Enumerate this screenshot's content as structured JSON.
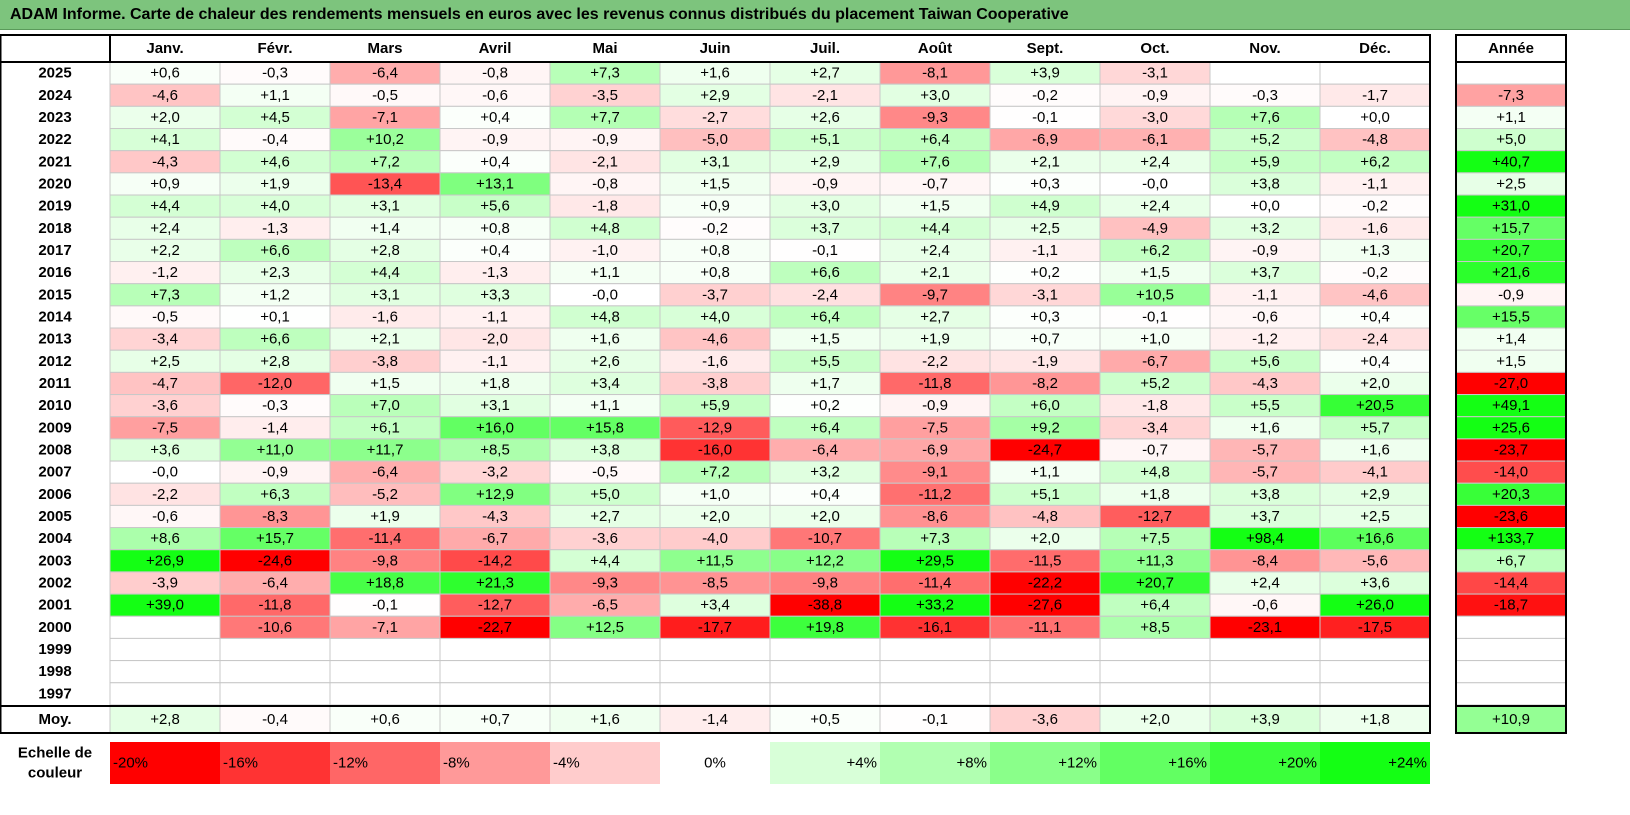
{
  "title": "ADAM Informe. Carte de chaleur des rendements mensuels en euros avec les revenus connus distribués du placement Taiwan Cooperative",
  "chart_data": {
    "type": "heatmap",
    "months": [
      "Janv.",
      "Févr.",
      "Mars",
      "Avril",
      "Mai",
      "Juin",
      "Juil.",
      "Août",
      "Sept.",
      "Oct.",
      "Nov.",
      "Déc."
    ],
    "year_header": "Année",
    "rows": [
      {
        "year": "2025",
        "values": [
          "+0,6",
          "-0,3",
          "-6,4",
          "-0,8",
          "+7,3",
          "+1,6",
          "+2,7",
          "-8,1",
          "+3,9",
          "-3,1",
          "",
          ""
        ],
        "annual": ""
      },
      {
        "year": "2024",
        "values": [
          "-4,6",
          "+1,1",
          "-0,5",
          "-0,6",
          "-3,5",
          "+2,9",
          "-2,1",
          "+3,0",
          "-0,2",
          "-0,9",
          "-0,3",
          "-1,7"
        ],
        "annual": "-7,3"
      },
      {
        "year": "2023",
        "values": [
          "+2,0",
          "+4,5",
          "-7,1",
          "+0,4",
          "+7,7",
          "-2,7",
          "+2,6",
          "-9,3",
          "-0,1",
          "-3,0",
          "+7,6",
          "+0,0"
        ],
        "annual": "+1,1"
      },
      {
        "year": "2022",
        "values": [
          "+4,1",
          "-0,4",
          "+10,2",
          "-0,9",
          "-0,9",
          "-5,0",
          "+5,1",
          "+6,4",
          "-6,9",
          "-6,1",
          "+5,2",
          "-4,8"
        ],
        "annual": "+5,0"
      },
      {
        "year": "2021",
        "values": [
          "-4,3",
          "+4,6",
          "+7,2",
          "+0,4",
          "-2,1",
          "+3,1",
          "+2,9",
          "+7,6",
          "+2,1",
          "+2,4",
          "+5,9",
          "+6,2"
        ],
        "annual": "+40,7"
      },
      {
        "year": "2020",
        "values": [
          "+0,9",
          "+1,9",
          "-13,4",
          "+13,1",
          "-0,8",
          "+1,5",
          "-0,9",
          "-0,7",
          "+0,3",
          "-0,0",
          "+3,8",
          "-1,1"
        ],
        "annual": "+2,5"
      },
      {
        "year": "2019",
        "values": [
          "+4,4",
          "+4,0",
          "+3,1",
          "+5,6",
          "-1,8",
          "+0,9",
          "+3,0",
          "+1,5",
          "+4,9",
          "+2,4",
          "+0,0",
          "-0,2"
        ],
        "annual": "+31,0"
      },
      {
        "year": "2018",
        "values": [
          "+2,4",
          "-1,3",
          "+1,4",
          "+0,8",
          "+4,8",
          "-0,2",
          "+3,7",
          "+4,4",
          "+2,5",
          "-4,9",
          "+3,2",
          "-1,6"
        ],
        "annual": "+15,7"
      },
      {
        "year": "2017",
        "values": [
          "+2,2",
          "+6,6",
          "+2,8",
          "+0,4",
          "-1,0",
          "+0,8",
          "-0,1",
          "+2,4",
          "-1,1",
          "+6,2",
          "-0,9",
          "+1,3"
        ],
        "annual": "+20,7"
      },
      {
        "year": "2016",
        "values": [
          "-1,2",
          "+2,3",
          "+4,4",
          "-1,3",
          "+1,1",
          "+0,8",
          "+6,6",
          "+2,1",
          "+0,2",
          "+1,5",
          "+3,7",
          "-0,2"
        ],
        "annual": "+21,6"
      },
      {
        "year": "2015",
        "values": [
          "+7,3",
          "+1,2",
          "+3,1",
          "+3,3",
          "-0,0",
          "-3,7",
          "-2,4",
          "-9,7",
          "-3,1",
          "+10,5",
          "-1,1",
          "-4,6"
        ],
        "annual": "-0,9"
      },
      {
        "year": "2014",
        "values": [
          "-0,5",
          "+0,1",
          "-1,6",
          "-1,1",
          "+4,8",
          "+4,0",
          "+6,4",
          "+2,7",
          "+0,3",
          "-0,1",
          "-0,6",
          "+0,4"
        ],
        "annual": "+15,5"
      },
      {
        "year": "2013",
        "values": [
          "-3,4",
          "+6,6",
          "+2,1",
          "-2,0",
          "+1,6",
          "-4,6",
          "+1,5",
          "+1,9",
          "+0,7",
          "+1,0",
          "-1,2",
          "-2,4"
        ],
        "annual": "+1,4"
      },
      {
        "year": "2012",
        "values": [
          "+2,5",
          "+2,8",
          "-3,8",
          "-1,1",
          "+2,6",
          "-1,6",
          "+5,5",
          "-2,2",
          "-1,9",
          "-6,7",
          "+5,6",
          "+0,4"
        ],
        "annual": "+1,5"
      },
      {
        "year": "2011",
        "values": [
          "-4,7",
          "-12,0",
          "+1,5",
          "+1,8",
          "+3,4",
          "-3,8",
          "+1,7",
          "-11,8",
          "-8,2",
          "+5,2",
          "-4,3",
          "+2,0"
        ],
        "annual": "-27,0"
      },
      {
        "year": "2010",
        "values": [
          "-3,6",
          "-0,3",
          "+7,0",
          "+3,1",
          "+1,1",
          "+5,9",
          "+0,2",
          "-0,9",
          "+6,0",
          "-1,8",
          "+5,5",
          "+20,5"
        ],
        "annual": "+49,1"
      },
      {
        "year": "2009",
        "values": [
          "-7,5",
          "-1,4",
          "+6,1",
          "+16,0",
          "+15,8",
          "-12,9",
          "+6,4",
          "-7,5",
          "+9,2",
          "-3,4",
          "+1,6",
          "+5,7"
        ],
        "annual": "+25,6"
      },
      {
        "year": "2008",
        "values": [
          "+3,6",
          "+11,0",
          "+11,7",
          "+8,5",
          "+3,8",
          "-16,0",
          "-6,4",
          "-6,9",
          "-24,7",
          "-0,7",
          "-5,7",
          "+1,6"
        ],
        "annual": "-23,7"
      },
      {
        "year": "2007",
        "values": [
          "-0,0",
          "-0,9",
          "-6,4",
          "-3,2",
          "-0,5",
          "+7,2",
          "+3,2",
          "-9,1",
          "+1,1",
          "+4,8",
          "-5,7",
          "-4,1"
        ],
        "annual": "-14,0"
      },
      {
        "year": "2006",
        "values": [
          "-2,2",
          "+6,3",
          "-5,2",
          "+12,9",
          "+5,0",
          "+1,0",
          "+0,4",
          "-11,2",
          "+5,1",
          "+1,8",
          "+3,8",
          "+2,9"
        ],
        "annual": "+20,3"
      },
      {
        "year": "2005",
        "values": [
          "-0,6",
          "-8,3",
          "+1,9",
          "-4,3",
          "+2,7",
          "+2,0",
          "+2,0",
          "-8,6",
          "-4,8",
          "-12,7",
          "+3,7",
          "+2,5"
        ],
        "annual": "-23,6"
      },
      {
        "year": "2004",
        "values": [
          "+8,6",
          "+15,7",
          "-11,4",
          "-6,7",
          "-3,6",
          "-4,0",
          "-10,7",
          "+7,3",
          "+2,0",
          "+7,5",
          "+98,4",
          "+16,6"
        ],
        "annual": "+133,7"
      },
      {
        "year": "2003",
        "values": [
          "+26,9",
          "-24,6",
          "-9,8",
          "-14,2",
          "+4,4",
          "+11,5",
          "+12,2",
          "+29,5",
          "-11,5",
          "+11,3",
          "-8,4",
          "-5,6"
        ],
        "annual": "+6,7"
      },
      {
        "year": "2002",
        "values": [
          "-3,9",
          "-6,4",
          "+18,8",
          "+21,3",
          "-9,3",
          "-8,5",
          "-9,8",
          "-11,4",
          "-22,2",
          "+20,7",
          "+2,4",
          "+3,6"
        ],
        "annual": "-14,4"
      },
      {
        "year": "2001",
        "values": [
          "+39,0",
          "-11,8",
          "-0,1",
          "-12,7",
          "-6,5",
          "+3,4",
          "-38,8",
          "+33,2",
          "-27,6",
          "+6,4",
          "-0,6",
          "+26,0"
        ],
        "annual": "-18,7"
      },
      {
        "year": "2000",
        "values": [
          "",
          "-10,6",
          "-7,1",
          "-22,7",
          "+12,5",
          "-17,7",
          "+19,8",
          "-16,1",
          "-11,1",
          "+8,5",
          "-23,1",
          "-17,5"
        ],
        "annual": ""
      },
      {
        "year": "1999",
        "values": [
          "",
          "",
          "",
          "",
          "",
          "",
          "",
          "",
          "",
          "",
          "",
          ""
        ],
        "annual": ""
      },
      {
        "year": "1998",
        "values": [
          "",
          "",
          "",
          "",
          "",
          "",
          "",
          "",
          "",
          "",
          "",
          ""
        ],
        "annual": ""
      },
      {
        "year": "1997",
        "values": [
          "",
          "",
          "",
          "",
          "",
          "",
          "",
          "",
          "",
          "",
          "",
          ""
        ],
        "annual": ""
      }
    ],
    "average_label": "Moy.",
    "average_values": [
      "+2,8",
      "-0,4",
      "+0,6",
      "+0,7",
      "+1,6",
      "-1,4",
      "+0,5",
      "-0,1",
      "-3,6",
      "+2,0",
      "+3,9",
      "+1,8"
    ],
    "average_annual": "+10,9",
    "scale_label": "Echelle de couleur",
    "scale_steps": [
      {
        "value": -20,
        "label": "-20%"
      },
      {
        "value": -16,
        "label": "-16%"
      },
      {
        "value": -12,
        "label": "-12%"
      },
      {
        "value": -8,
        "label": "-8%"
      },
      {
        "value": -4,
        "label": "-4%"
      },
      {
        "value": 0,
        "label": "0%"
      },
      {
        "value": 4,
        "label": "+4%"
      },
      {
        "value": 8,
        "label": "+8%"
      },
      {
        "value": 12,
        "label": "+12%"
      },
      {
        "value": 16,
        "label": "+16%"
      },
      {
        "value": 20,
        "label": "+20%"
      },
      {
        "value": 24,
        "label": "+24%"
      }
    ],
    "colors": {
      "negative": "#ff0000",
      "neutral": "#ffffff",
      "positive": "#00ff00",
      "title_bg": "#7dc47d"
    }
  }
}
